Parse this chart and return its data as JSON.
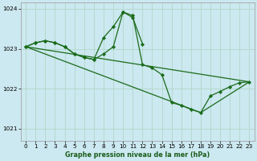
{
  "title": "Graphe pression niveau de la mer (hPa)",
  "background_color": "#cce8f0",
  "grid_color": "#b0d8c8",
  "line_color": "#1a6b1a",
  "xlim": [
    -0.5,
    23.5
  ],
  "ylim": [
    1020.7,
    1024.15
  ],
  "yticks": [
    1021,
    1022,
    1023,
    1024
  ],
  "xticks": [
    0,
    1,
    2,
    3,
    4,
    5,
    6,
    7,
    8,
    9,
    10,
    11,
    12,
    13,
    14,
    15,
    16,
    17,
    18,
    19,
    20,
    21,
    22,
    23
  ],
  "line1_x": [
    0,
    1,
    2,
    3,
    4,
    5,
    6,
    7,
    8,
    9,
    10,
    11,
    12,
    13,
    14,
    15,
    16,
    17,
    18,
    19,
    20,
    21,
    22,
    23
  ],
  "line1_y": [
    1023.05,
    1023.15,
    1023.2,
    1023.15,
    1023.05,
    1022.87,
    1022.78,
    1022.73,
    1022.87,
    1023.05,
    1023.92,
    1023.83,
    1022.6,
    1022.52,
    1022.35,
    1021.65,
    1021.58,
    1021.48,
    1021.4,
    1021.82,
    1021.93,
    1022.05,
    1022.15,
    1022.17
  ],
  "line2_x": [
    0,
    1,
    2,
    3,
    4,
    5,
    6,
    7,
    8,
    9,
    10,
    11,
    12
  ],
  "line2_y": [
    1023.05,
    1023.15,
    1023.2,
    1023.15,
    1023.05,
    1022.87,
    1022.78,
    1022.73,
    1023.28,
    1023.55,
    1023.92,
    1023.78,
    1023.12
  ],
  "line3_x": [
    0,
    7,
    23
  ],
  "line3_y": [
    1023.05,
    1022.73,
    1022.17
  ],
  "line4_x": [
    0,
    7,
    23
  ],
  "line4_y": [
    1023.05,
    1022.73,
    1021.4
  ]
}
